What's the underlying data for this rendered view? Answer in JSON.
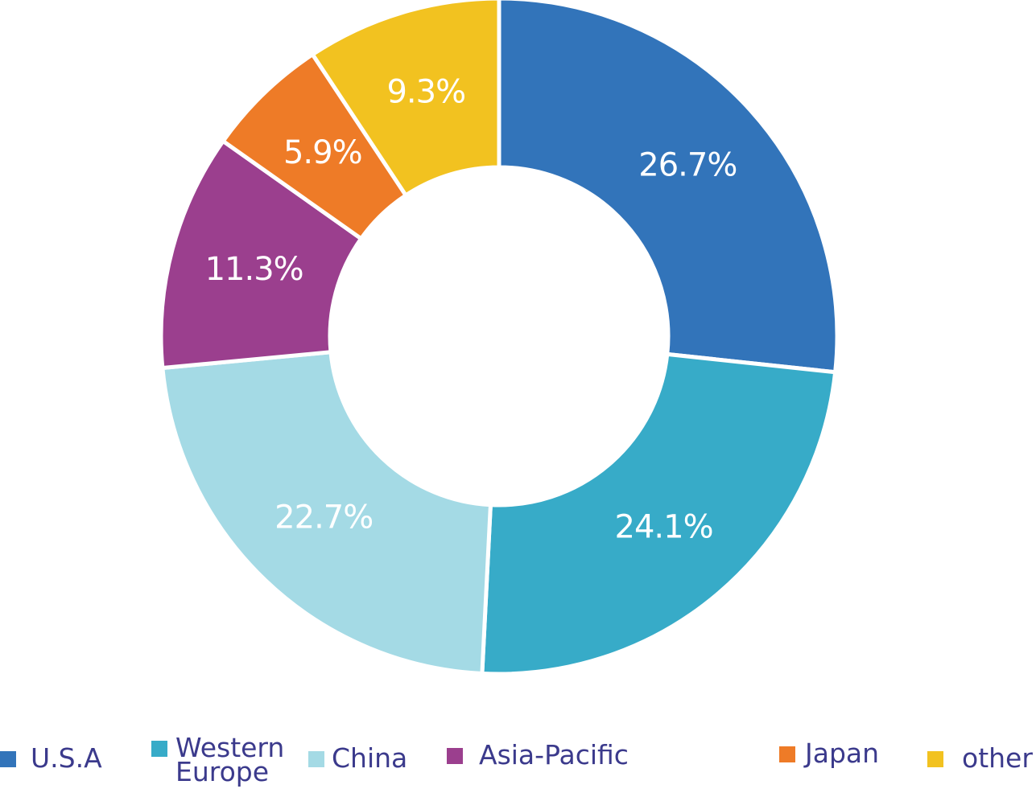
{
  "chart_data": {
    "type": "pie",
    "categories": [
      "U.S.A",
      "Western Europe",
      "China",
      "Asia-Pacific",
      "Japan",
      "other"
    ],
    "values": [
      26.7,
      24.1,
      22.7,
      11.3,
      5.9,
      9.3
    ],
    "value_labels": [
      "26.7%",
      "24.1%",
      "22.7%",
      "11.3%",
      "5.9%",
      "9.3%"
    ],
    "colors": [
      "#3274ba",
      "#37abc8",
      "#a4dae5",
      "#9b3f8e",
      "#ee7b27",
      "#f2c220"
    ]
  }
}
